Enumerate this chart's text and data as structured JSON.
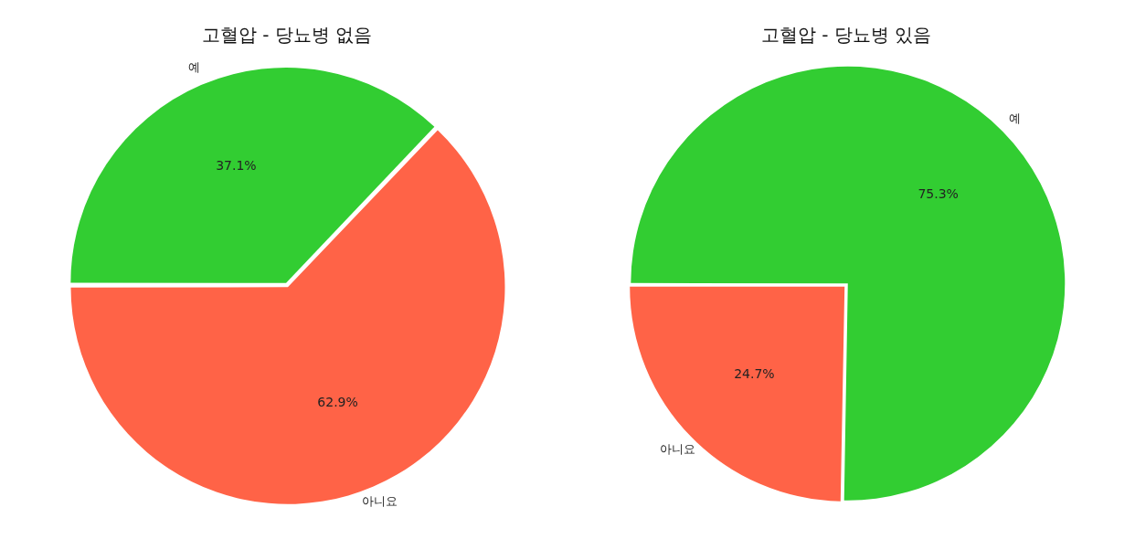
{
  "chart_data": [
    {
      "type": "pie",
      "title": "고혈압 - 당뇨병 없음",
      "categories": [
        "예",
        "아니요"
      ],
      "values": [
        37.1,
        62.9
      ],
      "value_labels": [
        "37.1%",
        "62.9%"
      ],
      "colors": [
        "#32cd32",
        "#ff6347"
      ],
      "legend": false
    },
    {
      "type": "pie",
      "title": "고혈압 - 당뇨병 있음",
      "categories": [
        "예",
        "아니요"
      ],
      "values": [
        75.3,
        24.7
      ],
      "value_labels": [
        "75.3%",
        "24.7%"
      ],
      "colors": [
        "#32cd32",
        "#ff6347"
      ],
      "legend": false
    }
  ]
}
